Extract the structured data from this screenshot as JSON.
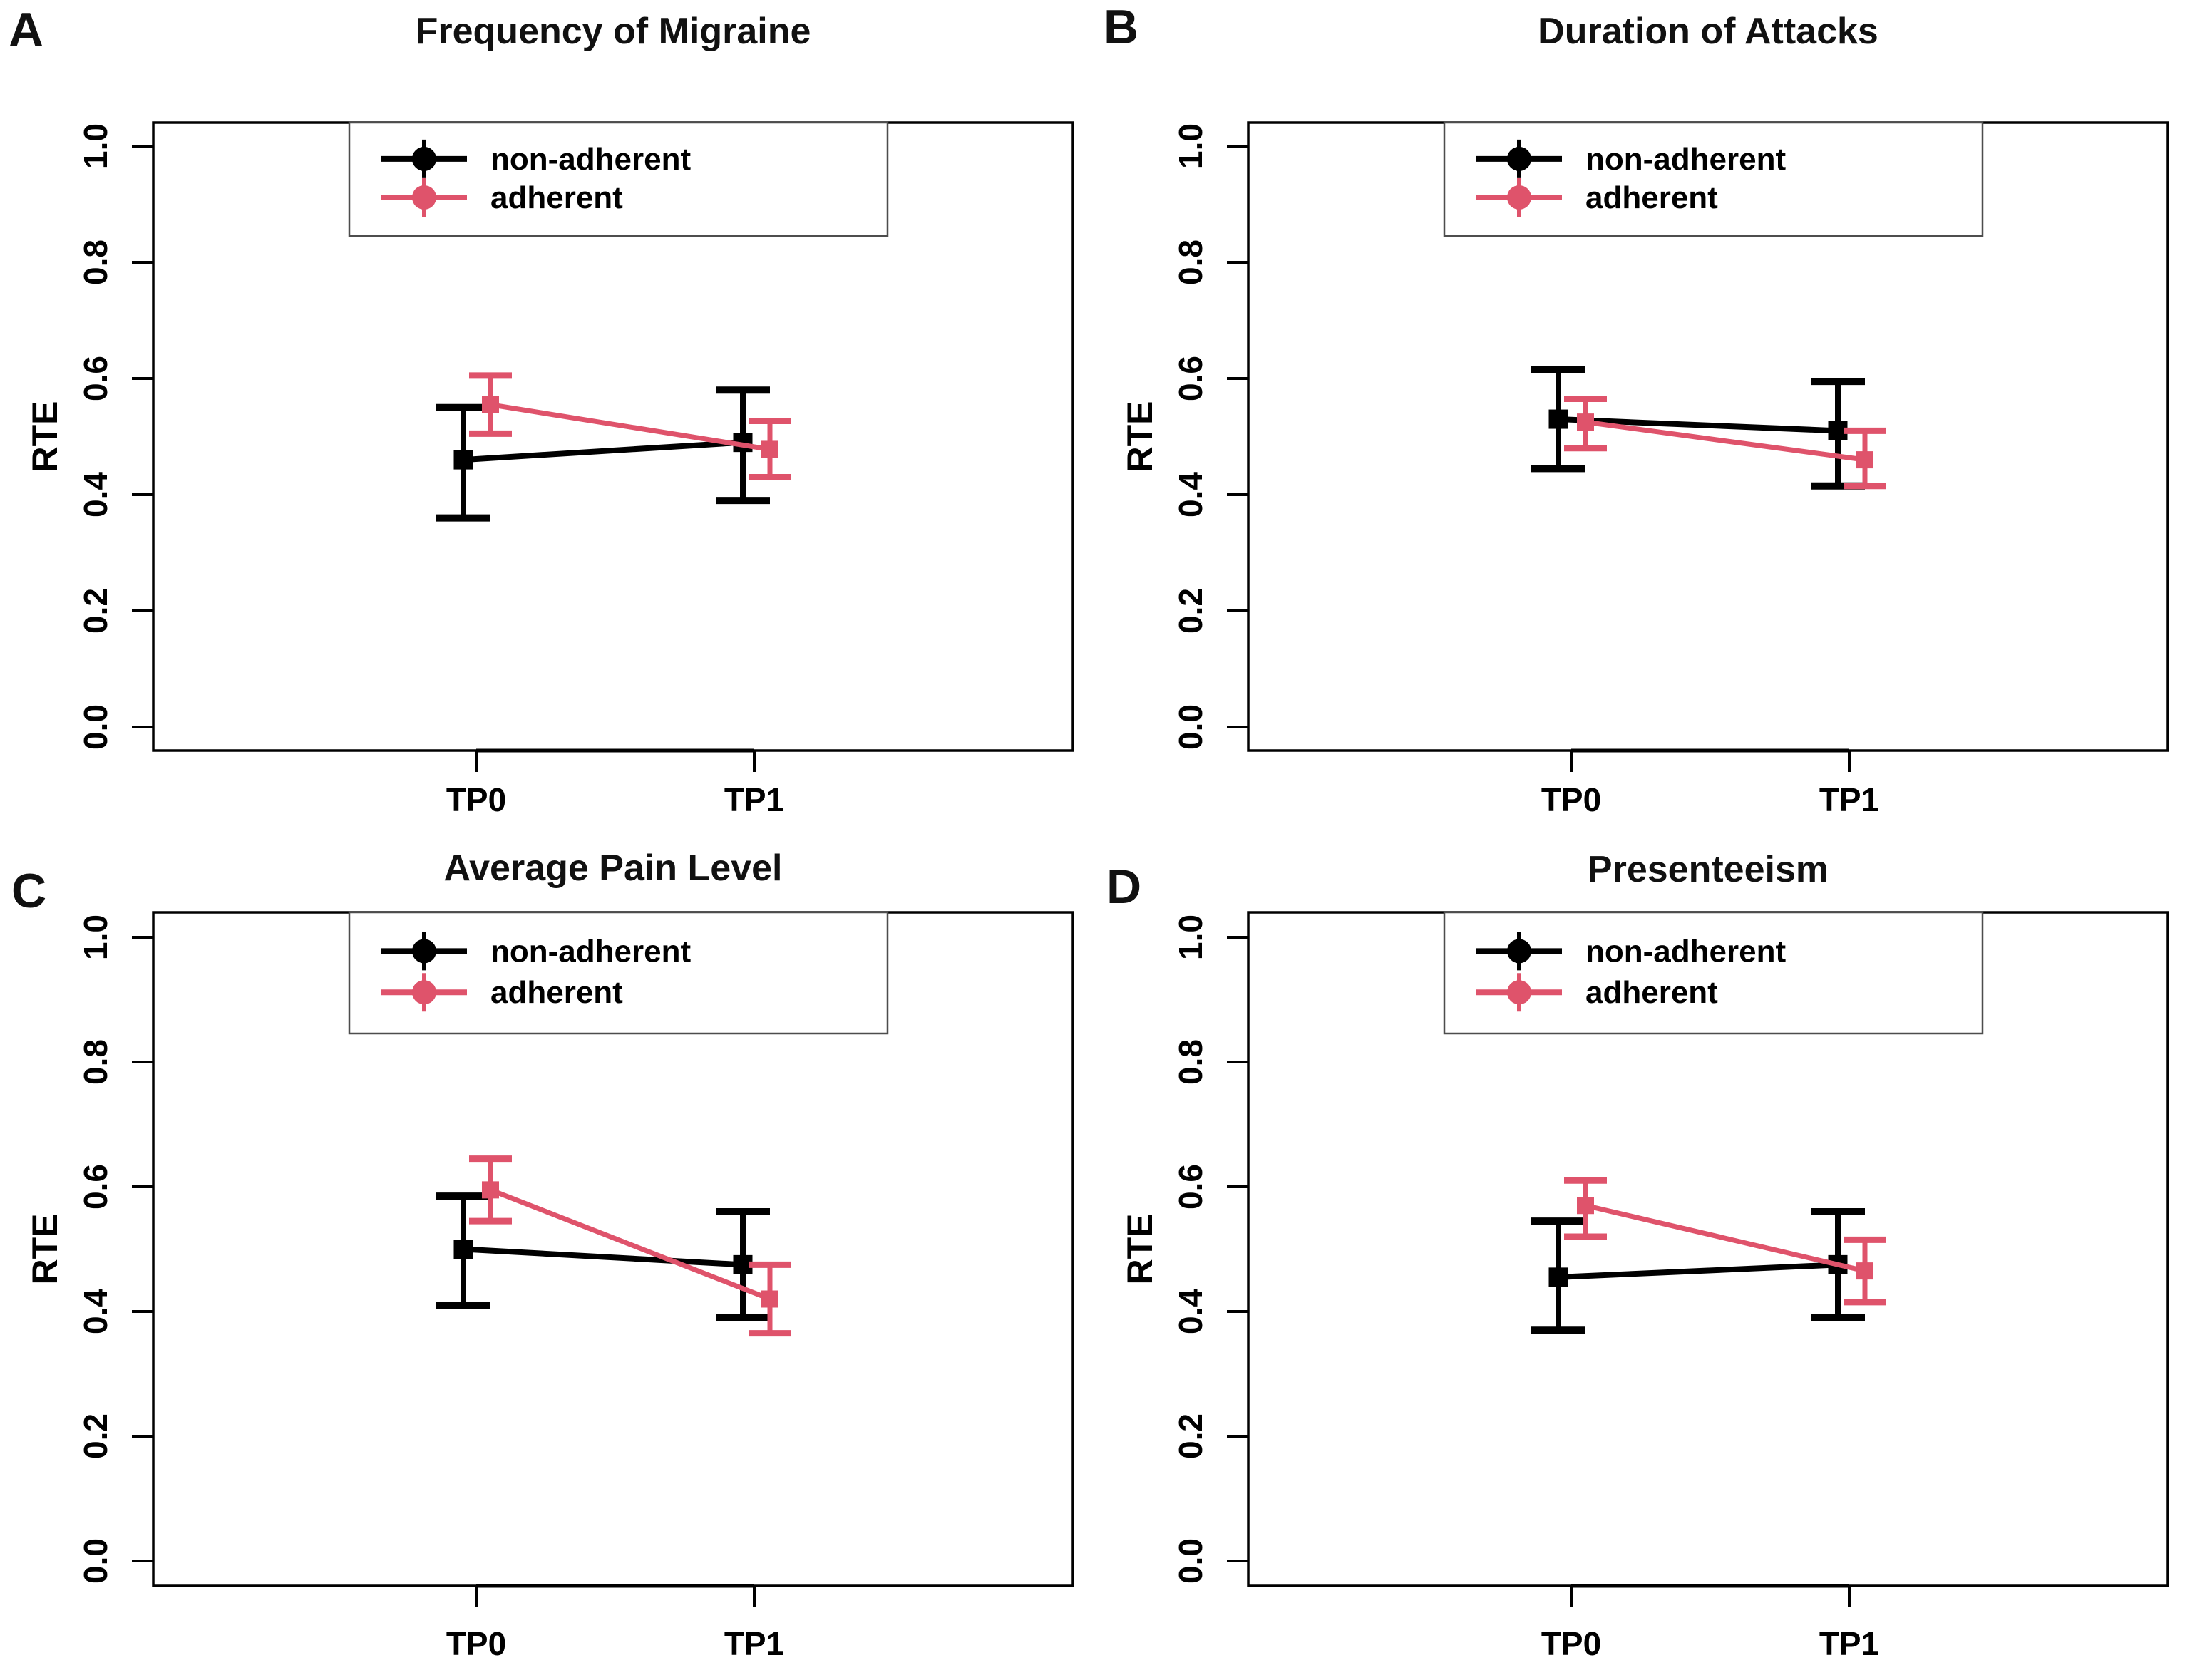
{
  "figure": {
    "background": "#ffffff",
    "black": "#000000",
    "pink": "#DF536B",
    "legend_border": "#4d4d4d"
  },
  "chart_data": [
    {
      "type": "line",
      "panel_letter": "A",
      "title": "Frequency of Migraine",
      "xlabel": "",
      "ylabel": "RTE",
      "ylim": [
        0.0,
        1.0
      ],
      "ytick_labels": [
        "0.0",
        "0.2",
        "0.4",
        "0.6",
        "0.8",
        "1.0"
      ],
      "x_categories": [
        "TP0",
        "TP1"
      ],
      "legend_position": "top-center",
      "series": [
        {
          "name": "non-adherent",
          "color": "#000000",
          "values": [
            0.46,
            0.49
          ],
          "ci_low": [
            0.36,
            0.39
          ],
          "ci_high": [
            0.55,
            0.58
          ]
        },
        {
          "name": "adherent",
          "color": "#DF536B",
          "values": [
            0.555,
            0.478
          ],
          "ci_low": [
            0.505,
            0.43
          ],
          "ci_high": [
            0.605,
            0.527
          ]
        }
      ]
    },
    {
      "type": "line",
      "panel_letter": "B",
      "title": "Duration of Attacks",
      "xlabel": "",
      "ylabel": "RTE",
      "ylim": [
        0.0,
        1.0
      ],
      "ytick_labels": [
        "0.0",
        "0.2",
        "0.4",
        "0.6",
        "0.8",
        "1.0"
      ],
      "x_categories": [
        "TP0",
        "TP1"
      ],
      "legend_position": "top-center",
      "series": [
        {
          "name": "non-adherent",
          "color": "#000000",
          "values": [
            0.53,
            0.51
          ],
          "ci_low": [
            0.445,
            0.415
          ],
          "ci_high": [
            0.615,
            0.595
          ]
        },
        {
          "name": "adherent",
          "color": "#DF536B",
          "values": [
            0.525,
            0.46
          ],
          "ci_low": [
            0.48,
            0.415
          ],
          "ci_high": [
            0.565,
            0.51
          ]
        }
      ]
    },
    {
      "type": "line",
      "panel_letter": "C",
      "title": "Average Pain Level",
      "xlabel": "",
      "ylabel": "RTE",
      "ylim": [
        0.0,
        1.0
      ],
      "ytick_labels": [
        "0.0",
        "0.2",
        "0.4",
        "0.6",
        "0.8",
        "1.0"
      ],
      "x_categories": [
        "TP0",
        "TP1"
      ],
      "legend_position": "top-center",
      "series": [
        {
          "name": "non-adherent",
          "color": "#000000",
          "values": [
            0.5,
            0.475
          ],
          "ci_low": [
            0.41,
            0.39
          ],
          "ci_high": [
            0.585,
            0.56
          ]
        },
        {
          "name": "adherent",
          "color": "#DF536B",
          "values": [
            0.595,
            0.42
          ],
          "ci_low": [
            0.545,
            0.365
          ],
          "ci_high": [
            0.645,
            0.475
          ]
        }
      ]
    },
    {
      "type": "line",
      "panel_letter": "D",
      "title": "Presenteeism",
      "xlabel": "",
      "ylabel": "RTE",
      "ylim": [
        0.0,
        1.0
      ],
      "ytick_labels": [
        "0.0",
        "0.2",
        "0.4",
        "0.6",
        "0.8",
        "1.0"
      ],
      "x_categories": [
        "TP0",
        "TP1"
      ],
      "legend_position": "top-center",
      "series": [
        {
          "name": "non-adherent",
          "color": "#000000",
          "values": [
            0.455,
            0.475
          ],
          "ci_low": [
            0.37,
            0.39
          ],
          "ci_high": [
            0.545,
            0.56
          ]
        },
        {
          "name": "adherent",
          "color": "#DF536B",
          "values": [
            0.57,
            0.465
          ],
          "ci_low": [
            0.52,
            0.415
          ],
          "ci_high": [
            0.61,
            0.515
          ]
        }
      ]
    }
  ]
}
